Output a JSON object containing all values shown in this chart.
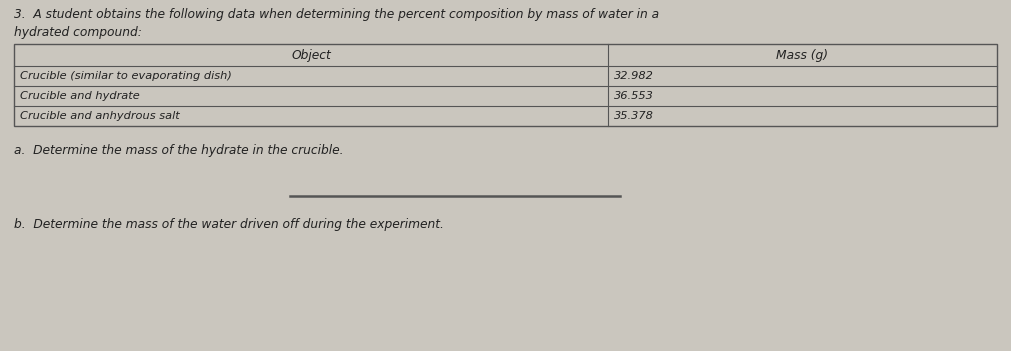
{
  "title_line1": "3.  A student obtains the following data when determining the percent composition by mass of water in a",
  "title_line2": "hydrated compound:",
  "table_headers": [
    "Object",
    "Mass (g)"
  ],
  "table_rows": [
    [
      "Crucible (similar to evaporating dish)",
      "32.982"
    ],
    [
      "Crucible and hydrate",
      "36.553"
    ],
    [
      "Crucible and anhydrous salt",
      "35.378"
    ]
  ],
  "question_a": "a.  Determine the mass of the hydrate in the crucible.",
  "question_b": "b.  Determine the mass of the water driven off during the experiment.",
  "bg_color": "#cac6be",
  "text_color": "#222222",
  "line_color": "#555555"
}
